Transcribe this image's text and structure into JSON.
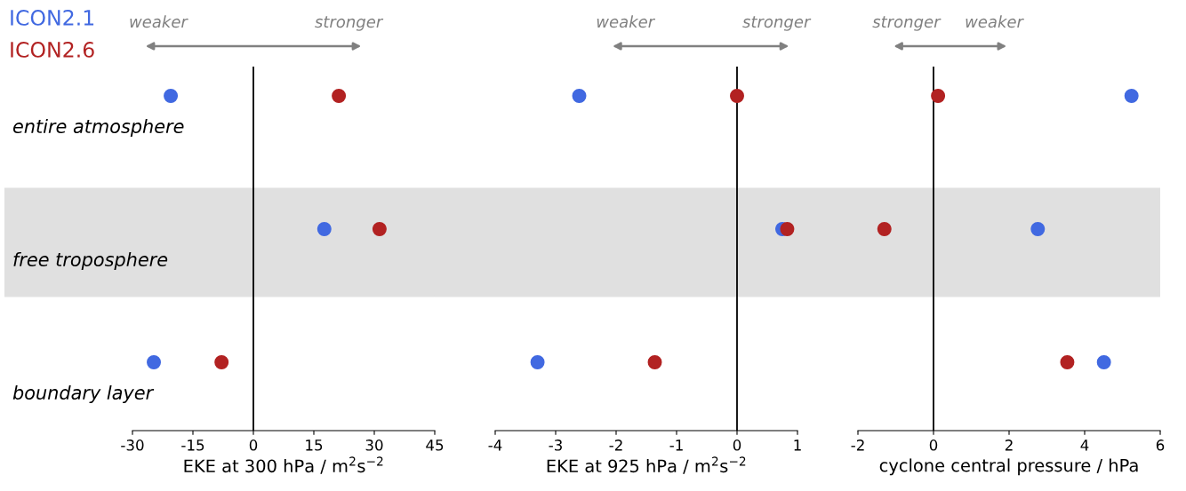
{
  "chart_data": [
    {
      "type": "scatter",
      "orientation": "horizontal",
      "categories": [
        "entire atmosphere",
        "free troposphere",
        "boundary layer"
      ],
      "xlabel": "EKE at 300 hPa / m$^{2}$s$^{−2}$",
      "xlim": [
        -30,
        45
      ],
      "xticks": [
        -30,
        -15,
        0,
        15,
        30,
        45
      ],
      "legend": "top left",
      "marker": "circle",
      "grid": false,
      "series": [
        {
          "name": "ICON2.1",
          "color": "#4169e1",
          "values": [
            -20.5,
            17.6,
            -24.7
          ]
        },
        {
          "name": "ICON2.6",
          "color": "#b22222",
          "values": [
            21.2,
            31.3,
            -7.9
          ]
        }
      ],
      "ref_lines": [
        {
          "axis": "x",
          "value": 0,
          "color": "#000000"
        }
      ],
      "bands": [
        {
          "axis": "y",
          "from": "free troposphere",
          "to": "free troposphere",
          "color": "#e0e0e0"
        }
      ],
      "annotations": [
        "weaker",
        "stronger"
      ]
    },
    {
      "type": "scatter",
      "orientation": "horizontal",
      "categories": [
        "entire atmosphere",
        "free troposphere",
        "boundary layer"
      ],
      "tick_labels": "x",
      "xlabel": "EKE at 925 hPa / m$^{2}$s$^{−2}$",
      "xlim": [
        -4,
        1
      ],
      "xticks": [
        -4,
        -3,
        -2,
        -1,
        0,
        1
      ],
      "marker": "circle",
      "grid": false,
      "series": [
        {
          "color": "#4169e1",
          "values": [
            -2.61,
            0.75,
            -3.3
          ]
        },
        {
          "color": "#b22222",
          "values": [
            0.0,
            0.83,
            -1.36
          ]
        }
      ],
      "ref_lines": [
        {
          "axis": "x",
          "value": 0,
          "color": "#000000"
        }
      ],
      "bands": [
        {
          "axis": "y",
          "from": "free troposphere",
          "to": "free troposphere",
          "color": "#e0e0e0"
        }
      ],
      "annotations": [
        "weaker",
        "stronger"
      ]
    },
    {
      "type": "scatter",
      "orientation": "horizontal",
      "categories": [
        "entire atmosphere",
        "free troposphere",
        "boundary layer"
      ],
      "tick_labels": "x",
      "xlabel": "cyclone central pressure / hPa",
      "xlim": [
        -2,
        6
      ],
      "xticks": [
        -2,
        0,
        2,
        4,
        6
      ],
      "marker": "circle",
      "grid": false,
      "series": [
        {
          "color": "#4169e1",
          "values": [
            5.24,
            2.76,
            4.51
          ]
        },
        {
          "color": "#b22222",
          "values": [
            0.12,
            -1.3,
            3.54
          ]
        }
      ],
      "ref_lines": [
        {
          "axis": "x",
          "value": 0,
          "color": "#000000"
        }
      ],
      "bands": [
        {
          "axis": "y",
          "from": "free troposphere",
          "to": "free troposphere",
          "color": "#e0e0e0"
        }
      ],
      "annotations": [
        "stronger",
        "weaker"
      ]
    }
  ]
}
